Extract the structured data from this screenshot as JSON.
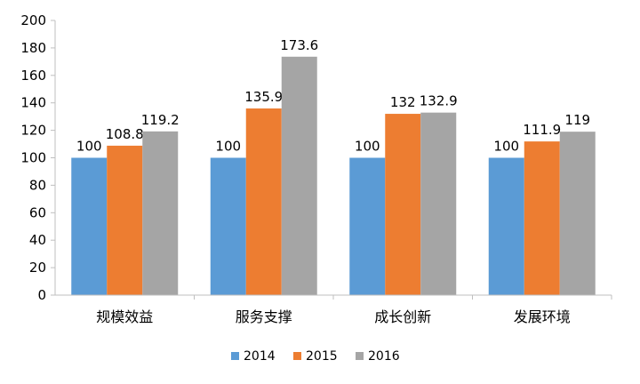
{
  "chart_data": {
    "type": "bar",
    "categories": [
      "规模效益",
      "服务支撑",
      "成长创新",
      "发展环境"
    ],
    "series": [
      {
        "name": "2014",
        "values": [
          100,
          100,
          100,
          100
        ],
        "color": "#5b9bd5"
      },
      {
        "name": "2015",
        "values": [
          108.8,
          135.9,
          132,
          111.9
        ],
        "color": "#ed7d31"
      },
      {
        "name": "2016",
        "values": [
          119.2,
          173.6,
          132.9,
          119
        ],
        "color": "#a5a5a5"
      }
    ],
    "data_labels": [
      [
        "100",
        "100",
        "100",
        "100"
      ],
      [
        "108.8",
        "135.9",
        "132",
        "111.9"
      ],
      [
        "119.2",
        "173.6",
        "132.9",
        "119"
      ]
    ],
    "yticks": [
      "0",
      "20",
      "40",
      "60",
      "80",
      "100",
      "120",
      "140",
      "160",
      "180",
      "200"
    ],
    "ylim": [
      0,
      200
    ],
    "grid": false,
    "legend_position": "bottom"
  }
}
